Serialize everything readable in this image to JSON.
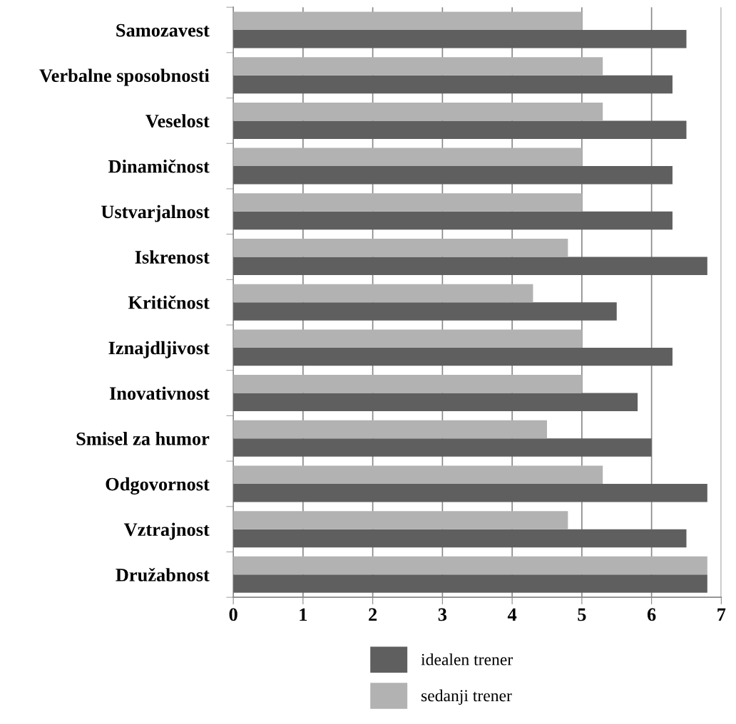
{
  "chart_data": {
    "type": "bar",
    "orientation": "horizontal",
    "categories": [
      "Samozavest",
      "Verbalne sposobnosti",
      "Veselost",
      "Dinamičnost",
      "Ustvarjalnost",
      "Iskrenost",
      "Kritičnost",
      "Iznajdljivost",
      "Inovativnost",
      "Smisel za humor",
      "Odgovornost",
      "Vztrajnost",
      "Družabnost"
    ],
    "series": [
      {
        "name": "idealen trener",
        "color": "#5f5f5f",
        "values": [
          6.5,
          6.3,
          6.5,
          6.3,
          6.3,
          6.8,
          5.5,
          6.3,
          5.8,
          6.0,
          6.8,
          6.5,
          6.8
        ]
      },
      {
        "name": "sedanji trener",
        "color": "#b2b2b2",
        "values": [
          5.0,
          5.3,
          5.3,
          5.0,
          5.0,
          4.8,
          4.3,
          5.0,
          5.0,
          4.5,
          5.3,
          4.8,
          6.8
        ]
      }
    ],
    "xlim": [
      0,
      7
    ],
    "xticks": [
      0,
      1,
      2,
      3,
      4,
      5,
      6,
      7
    ],
    "grid": "x",
    "legend": "bottom"
  }
}
